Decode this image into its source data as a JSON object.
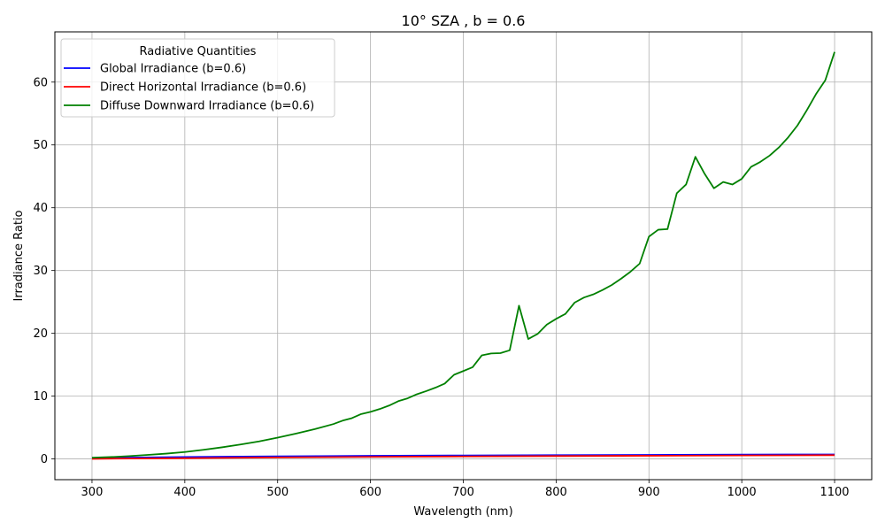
{
  "chart_data": {
    "type": "line",
    "title": "10° SZA , b = 0.6",
    "xlabel": "Wavelength (nm)",
    "ylabel": "Irradiance Ratio",
    "xlim": [
      260,
      1140
    ],
    "ylim": [
      -3.3,
      68
    ],
    "xticks": [
      300,
      400,
      500,
      600,
      700,
      800,
      900,
      1000,
      1100
    ],
    "yticks": [
      0,
      10,
      20,
      30,
      40,
      50,
      60
    ],
    "grid": true,
    "legend": {
      "title": "Radiative Quantities",
      "placement": "top-left"
    },
    "series": [
      {
        "name": "Global Irradiance (b=0.6)",
        "color": "#0000ff",
        "x": [
          300,
          400,
          500,
          600,
          700,
          800,
          900,
          1000,
          1100
        ],
        "y": [
          0.15,
          0.3,
          0.42,
          0.5,
          0.56,
          0.61,
          0.65,
          0.69,
          0.72
        ]
      },
      {
        "name": "Direct Horizontal Irradiance (b=0.6)",
        "color": "#ff0000",
        "x": [
          300,
          400,
          500,
          600,
          700,
          800,
          900,
          1000,
          1100
        ],
        "y": [
          0.02,
          0.12,
          0.24,
          0.33,
          0.4,
          0.46,
          0.51,
          0.56,
          0.6
        ]
      },
      {
        "name": "Diffuse Downward Irradiance (b=0.6)",
        "color": "#008000",
        "x": [
          300,
          320,
          340,
          360,
          380,
          400,
          420,
          440,
          460,
          480,
          500,
          520,
          540,
          560,
          570,
          580,
          590,
          600,
          610,
          620,
          630,
          640,
          650,
          660,
          670,
          680,
          690,
          700,
          710,
          720,
          730,
          740,
          750,
          760,
          770,
          780,
          790,
          800,
          810,
          820,
          830,
          840,
          850,
          860,
          870,
          880,
          890,
          900,
          910,
          920,
          930,
          940,
          950,
          960,
          970,
          980,
          990,
          1000,
          1010,
          1020,
          1030,
          1040,
          1050,
          1060,
          1070,
          1080,
          1090,
          1100
        ],
        "y": [
          0.2,
          0.3,
          0.45,
          0.65,
          0.85,
          1.1,
          1.45,
          1.85,
          2.3,
          2.8,
          3.4,
          4.05,
          4.75,
          5.55,
          6.1,
          6.5,
          7.15,
          7.5,
          7.95,
          8.5,
          9.2,
          9.65,
          10.3,
          10.8,
          11.35,
          12.0,
          13.4,
          14.0,
          14.6,
          16.5,
          16.8,
          16.85,
          17.3,
          24.4,
          19.1,
          19.9,
          21.4,
          22.3,
          23.1,
          24.9,
          25.7,
          26.2,
          26.9,
          27.7,
          28.7,
          29.8,
          31.1,
          35.4,
          36.5,
          36.6,
          42.3,
          43.7,
          48.1,
          45.4,
          43.1,
          44.1,
          43.7,
          44.6,
          46.5,
          47.3,
          48.3,
          49.6,
          51.2,
          53.1,
          55.5,
          58.1,
          60.3,
          64.8
        ]
      }
    ]
  }
}
